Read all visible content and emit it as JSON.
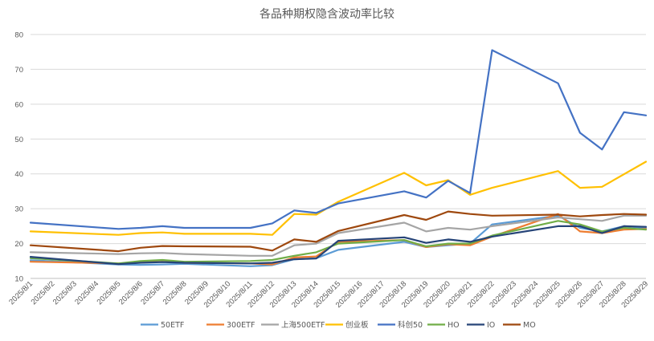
{
  "chart_data": {
    "type": "line",
    "title": "各品种期权隐含波动率比较",
    "xlabel": "",
    "ylabel": "",
    "ylim": [
      10,
      80
    ],
    "yticks": [
      10,
      20,
      30,
      40,
      50,
      60,
      70,
      80
    ],
    "grid": true,
    "legend_position": "bottom",
    "categories": [
      "2025/8/1",
      "2025/8/2",
      "2025/8/3",
      "2025/8/4",
      "2025/8/5",
      "2025/8/6",
      "2025/8/7",
      "2025/8/8",
      "2025/8/9",
      "2025/8/10",
      "2025/8/11",
      "2025/8/12",
      "2025/8/13",
      "2025/8/14",
      "2025/8/15",
      "2025/8/16",
      "2025/8/17",
      "2025/8/18",
      "2025/8/19",
      "2025/8/20",
      "2025/8/21",
      "2025/8/22",
      "2025/8/23",
      "2025/8/24",
      "2025/8/25",
      "2025/8/26",
      "2025/8/27",
      "2025/8/28",
      "2025/8/29"
    ],
    "series": [
      {
        "name": "50ETF",
        "color": "#5b9bd5",
        "points": [
          [
            0,
            15.2
          ],
          [
            4,
            14.0
          ],
          [
            5,
            13.9
          ],
          [
            6,
            14.0
          ],
          [
            7,
            14.2
          ],
          [
            10,
            13.5
          ],
          [
            11,
            13.8
          ],
          [
            12,
            15.5
          ],
          [
            13,
            15.8
          ],
          [
            14,
            18.2
          ],
          [
            17,
            20.5
          ],
          [
            18,
            19.0
          ],
          [
            19,
            19.5
          ],
          [
            20,
            20.0
          ],
          [
            21,
            25.5
          ],
          [
            24,
            28.0
          ],
          [
            25,
            24.5
          ],
          [
            26,
            23.5
          ],
          [
            27,
            25.0
          ],
          [
            28,
            24.5
          ]
        ]
      },
      {
        "name": "300ETF",
        "color": "#ed7d31",
        "points": [
          [
            0,
            14.8
          ],
          [
            4,
            14.3
          ],
          [
            5,
            14.6
          ],
          [
            6,
            14.8
          ],
          [
            7,
            14.5
          ],
          [
            10,
            14.3
          ],
          [
            11,
            14.0
          ],
          [
            12,
            16.0
          ],
          [
            13,
            16.3
          ],
          [
            14,
            20.5
          ],
          [
            17,
            21.0
          ],
          [
            18,
            19.0
          ],
          [
            19,
            19.8
          ],
          [
            20,
            19.5
          ],
          [
            21,
            22.0
          ],
          [
            24,
            28.5
          ],
          [
            25,
            23.5
          ],
          [
            26,
            23.0
          ],
          [
            27,
            24.0
          ],
          [
            28,
            24.2
          ]
        ]
      },
      {
        "name": "上海500ETF",
        "color": "#a5a5a5",
        "points": [
          [
            0,
            17.5
          ],
          [
            4,
            17.0
          ],
          [
            5,
            17.2
          ],
          [
            6,
            17.3
          ],
          [
            7,
            17.0
          ],
          [
            10,
            16.5
          ],
          [
            11,
            16.5
          ],
          [
            12,
            19.5
          ],
          [
            13,
            20.0
          ],
          [
            14,
            23.0
          ],
          [
            17,
            26.0
          ],
          [
            18,
            23.5
          ],
          [
            19,
            24.5
          ],
          [
            20,
            24.0
          ],
          [
            21,
            25.0
          ],
          [
            24,
            27.5
          ],
          [
            25,
            27.0
          ],
          [
            26,
            26.5
          ],
          [
            27,
            28.0
          ],
          [
            28,
            28.0
          ]
        ]
      },
      {
        "name": "创业板",
        "color": "#ffc000",
        "points": [
          [
            0,
            23.5
          ],
          [
            4,
            22.5
          ],
          [
            5,
            23.0
          ],
          [
            6,
            23.2
          ],
          [
            7,
            22.8
          ],
          [
            10,
            22.8
          ],
          [
            11,
            22.5
          ],
          [
            12,
            28.5
          ],
          [
            13,
            28.3
          ],
          [
            14,
            32.0
          ],
          [
            17,
            40.3
          ],
          [
            18,
            36.7
          ],
          [
            19,
            38.2
          ],
          [
            20,
            34.0
          ],
          [
            21,
            36.0
          ],
          [
            24,
            40.8
          ],
          [
            25,
            36.0
          ],
          [
            26,
            36.3
          ],
          [
            28,
            43.5
          ]
        ]
      },
      {
        "name": "科创50",
        "color": "#4472c4",
        "points": [
          [
            0,
            26.0
          ],
          [
            4,
            24.2
          ],
          [
            5,
            24.5
          ],
          [
            6,
            25.0
          ],
          [
            7,
            24.5
          ],
          [
            10,
            24.5
          ],
          [
            11,
            25.8
          ],
          [
            12,
            29.5
          ],
          [
            13,
            28.8
          ],
          [
            14,
            31.5
          ],
          [
            17,
            35.0
          ],
          [
            18,
            33.2
          ],
          [
            19,
            38.0
          ],
          [
            20,
            34.5
          ],
          [
            21,
            75.5
          ],
          [
            24,
            66.0
          ],
          [
            25,
            51.8
          ],
          [
            26,
            47.0
          ],
          [
            27,
            57.7
          ],
          [
            28,
            56.8
          ]
        ]
      },
      {
        "name": "HO",
        "color": "#70ad47",
        "points": [
          [
            0,
            15.8
          ],
          [
            4,
            14.3
          ],
          [
            5,
            15.0
          ],
          [
            6,
            15.3
          ],
          [
            7,
            14.8
          ],
          [
            10,
            15.0
          ],
          [
            11,
            15.3
          ],
          [
            12,
            16.5
          ],
          [
            13,
            17.5
          ],
          [
            14,
            20.0
          ],
          [
            17,
            21.0
          ],
          [
            18,
            19.2
          ],
          [
            19,
            20.0
          ],
          [
            20,
            20.0
          ],
          [
            21,
            22.3
          ],
          [
            24,
            26.5
          ],
          [
            25,
            25.5
          ],
          [
            26,
            23.5
          ],
          [
            27,
            24.5
          ],
          [
            28,
            24.0
          ]
        ]
      },
      {
        "name": "IO",
        "color": "#264478",
        "points": [
          [
            0,
            16.2
          ],
          [
            4,
            14.1
          ],
          [
            5,
            14.5
          ],
          [
            6,
            14.7
          ],
          [
            7,
            14.5
          ],
          [
            10,
            14.3
          ],
          [
            11,
            14.5
          ],
          [
            12,
            15.5
          ],
          [
            13,
            15.7
          ],
          [
            14,
            20.8
          ],
          [
            17,
            21.8
          ],
          [
            18,
            20.2
          ],
          [
            19,
            21.2
          ],
          [
            20,
            20.5
          ],
          [
            21,
            22.0
          ],
          [
            24,
            25.0
          ],
          [
            25,
            25.0
          ],
          [
            26,
            23.0
          ],
          [
            27,
            25.0
          ],
          [
            28,
            24.8
          ]
        ]
      },
      {
        "name": "MO",
        "color": "#9e480e",
        "points": [
          [
            0,
            19.5
          ],
          [
            4,
            17.8
          ],
          [
            5,
            18.8
          ],
          [
            6,
            19.3
          ],
          [
            7,
            19.2
          ],
          [
            10,
            19.1
          ],
          [
            11,
            18.0
          ],
          [
            12,
            21.2
          ],
          [
            13,
            20.5
          ],
          [
            14,
            23.6
          ],
          [
            17,
            28.2
          ],
          [
            18,
            26.8
          ],
          [
            19,
            29.2
          ],
          [
            20,
            28.5
          ],
          [
            21,
            28.0
          ],
          [
            24,
            28.3
          ],
          [
            25,
            27.8
          ],
          [
            26,
            28.2
          ],
          [
            27,
            28.5
          ],
          [
            28,
            28.3
          ]
        ]
      }
    ]
  }
}
